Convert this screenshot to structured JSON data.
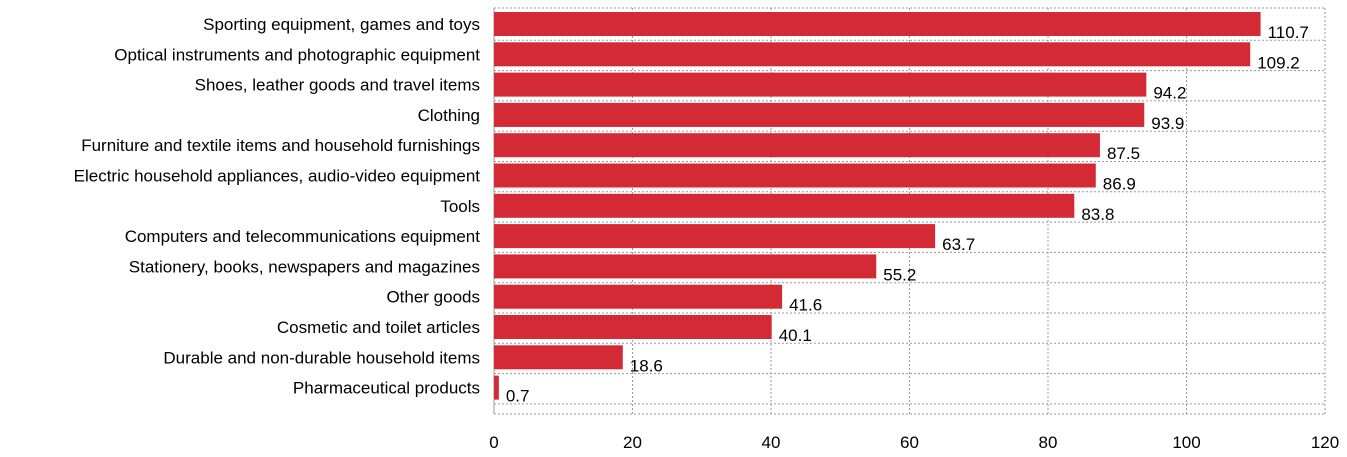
{
  "chart_data": {
    "type": "bar",
    "orientation": "horizontal",
    "categories": [
      "Sporting equipment, games and toys",
      "Optical instruments and photographic equipment",
      "Shoes, leather goods and travel items",
      "Clothing",
      "Furniture and textile items and household furnishings",
      "Electric household appliances, audio-video equipment",
      "Tools",
      "Computers and telecommunications equipment",
      "Stationery, books, newspapers and magazines",
      "Other goods",
      "Cosmetic and toilet articles",
      "Durable and non-durable household items",
      "Pharmaceutical products"
    ],
    "values": [
      110.7,
      109.2,
      94.2,
      93.9,
      87.5,
      86.9,
      83.8,
      63.7,
      55.2,
      41.6,
      40.1,
      18.6,
      0.7
    ],
    "value_labels": [
      "110.7",
      "109.2",
      "94.2",
      "93.9",
      "87.5",
      "86.9",
      "83.8",
      "63.7",
      "55.2",
      "41.6",
      "40.1",
      "18.6",
      "0.7"
    ],
    "xlim": [
      0,
      120
    ],
    "x_ticks": [
      0,
      20,
      40,
      60,
      80,
      100,
      120
    ],
    "x_tick_labels": [
      "0",
      "20",
      "40",
      "60",
      "80",
      "100",
      "120"
    ],
    "title": "",
    "xlabel": "",
    "ylabel": "",
    "grid": true,
    "bar_color": "#d42a36"
  }
}
